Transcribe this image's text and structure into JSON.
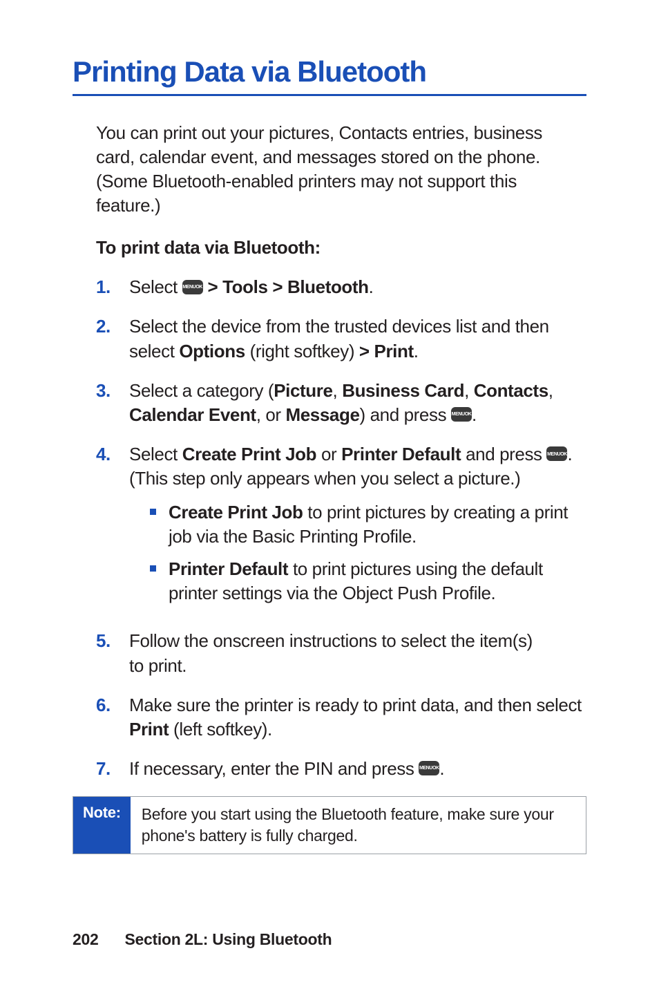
{
  "title": "Printing Data via Bluetooth",
  "intro": "You can print out your pictures, Contacts entries, business card, calendar event, and messages stored on the phone. (Some Bluetooth-enabled printers may not support this feature.)",
  "subhead": "To print data via Bluetooth:",
  "menu_key": {
    "line1": "MENU",
    "line2": "OK"
  },
  "steps": {
    "s1": {
      "num": "1.",
      "pre": "Select ",
      "post": " > Tools > Bluetooth",
      "tail": "."
    },
    "s2": {
      "num": "2.",
      "a": "Select the device from the trusted devices list and then select ",
      "b": "Options",
      "c": " (right softkey) ",
      "d": "> Print",
      "e": "."
    },
    "s3": {
      "num": "3.",
      "a": "Select a category (",
      "b": "Picture",
      "c": ", ",
      "d": "Business Card",
      "e": ", ",
      "f": "Contacts",
      "g": ", ",
      "h": "Calendar Event",
      "i": ", or ",
      "j": "Message",
      "k": ") and press ",
      "l": "."
    },
    "s4": {
      "num": "4.",
      "a": "Select ",
      "b": "Create Print Job",
      "c": " or ",
      "d": "Printer Default",
      "e": " and press ",
      "f": ". (This step only appears when you select a picture.)",
      "sub1": {
        "a": "Create Print Job",
        "b": " to print pictures by creating a print job via the Basic Printing Profile."
      },
      "sub2": {
        "a": "Printer Default",
        "b": " to print pictures using the default printer settings via the Object Push Profile."
      }
    },
    "s5": {
      "num": "5.",
      "a": "Follow the onscreen instructions to select the item(s) to print."
    },
    "s6": {
      "num": "6.",
      "a": "Make sure the printer is ready to print data, and then select ",
      "b": "Print",
      "c": " (left softkey)."
    },
    "s7": {
      "num": "7.",
      "a": "If necessary, enter the PIN and press ",
      "b": "."
    }
  },
  "note": {
    "label": "Note:",
    "body": "Before you start using the Bluetooth feature, make sure your phone's battery is fully charged."
  },
  "footer": {
    "page": "202",
    "section": "Section 2L: Using Bluetooth"
  },
  "colors": {
    "accent": "#1a4fb6",
    "text": "#231f20",
    "key_bg": "#3a3a3a",
    "note_border": "#9aa0a6",
    "bg": "#ffffff"
  }
}
